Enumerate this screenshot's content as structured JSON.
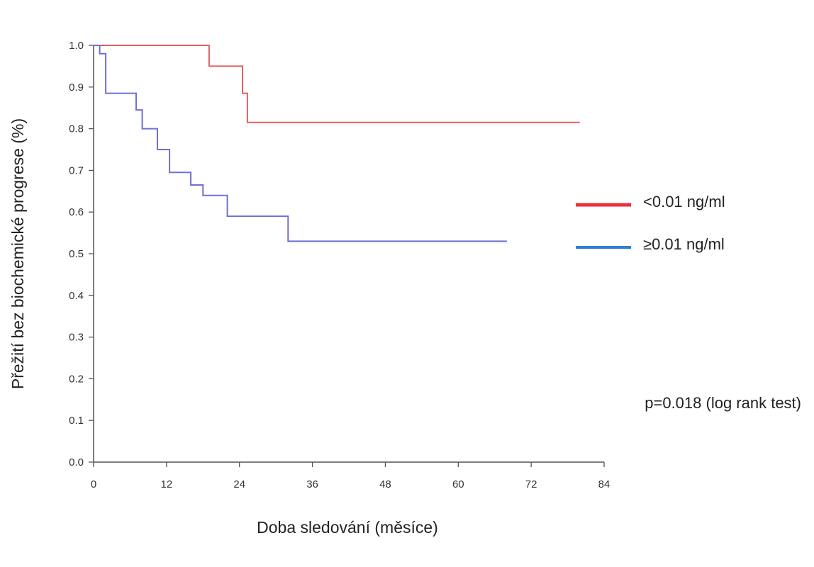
{
  "chart_data": {
    "type": "line",
    "step": true,
    "title": "",
    "xlabel": "Doba sledování (měsíce)",
    "ylabel": "Přežití bez biochemické progrese (%)",
    "xlim": [
      0,
      84
    ],
    "ylim": [
      0,
      1
    ],
    "xticks": [
      0,
      12,
      24,
      36,
      48,
      60,
      72,
      84
    ],
    "xtick_labels": [
      "0",
      "12",
      "24",
      "36",
      "48",
      "60",
      "72",
      "84"
    ],
    "yticks": [
      0,
      0.1,
      0.2,
      0.3,
      0.4,
      0.5,
      0.6,
      0.7,
      0.8,
      0.9,
      1.0
    ],
    "ytick_labels": [
      "0.0",
      "0.1",
      "0.2",
      "0.3",
      "0.4",
      "0.5",
      "0.6",
      "0.7",
      "0.8",
      "0.9",
      "1.0"
    ],
    "grid": false,
    "legend_position": "right",
    "series": [
      {
        "name": "<0.01 ng/ml",
        "color": "#e06060",
        "legend_color": "#e8323a",
        "x": [
          0,
          19,
          19,
          24.5,
          24.5,
          25.3,
          25.3,
          80
        ],
        "y": [
          1.0,
          1.0,
          0.95,
          0.95,
          0.885,
          0.885,
          0.815,
          0.815
        ]
      },
      {
        "name": "≥0.01 ng/ml",
        "color": "#6f6fd6",
        "legend_color": "#2f7fd0",
        "x": [
          0,
          1,
          1,
          2,
          2,
          7,
          7,
          8,
          8,
          10.5,
          10.5,
          12.5,
          12.5,
          16,
          16,
          18,
          18,
          22,
          22,
          32,
          32,
          37.5,
          37.5,
          68
        ],
        "y": [
          1.0,
          1.0,
          0.98,
          0.98,
          0.885,
          0.885,
          0.845,
          0.845,
          0.8,
          0.8,
          0.75,
          0.75,
          0.695,
          0.695,
          0.665,
          0.665,
          0.64,
          0.64,
          0.59,
          0.59,
          0.53,
          0.53,
          0.53,
          0.53
        ]
      }
    ],
    "annotations": [
      {
        "text": "p=0.018 (log rank test)"
      }
    ]
  }
}
